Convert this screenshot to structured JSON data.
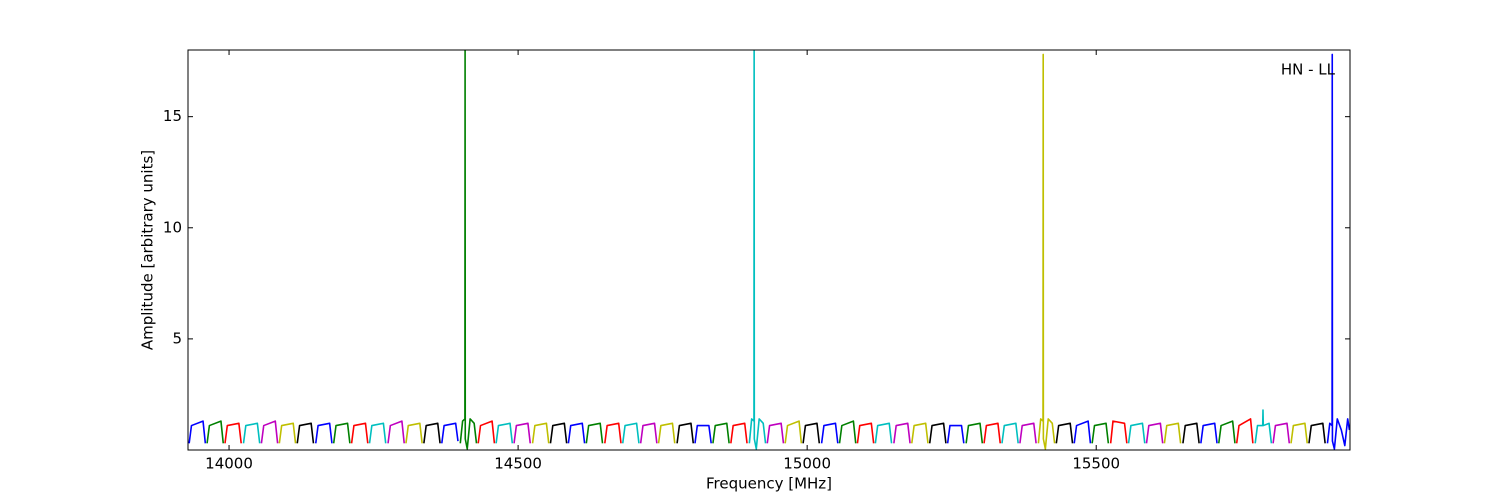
{
  "chart_data": {
    "type": "line",
    "xlabel": "Frequency [MHz]",
    "ylabel": "Amplitude [arbitrary units]",
    "annotation": "HN - LL",
    "xlim": [
      13929,
      15939
    ],
    "ylim": [
      0,
      18
    ],
    "xticks": [
      14000,
      14500,
      15000,
      15500
    ],
    "yticks": [
      5,
      10,
      15
    ],
    "series": [
      {
        "color": "#0000ff",
        "x": [
          13931,
          13935,
          13955,
          13959,
          null,
          14150,
          14154,
          14174,
          14178,
          null,
          14368,
          14372,
          14392,
          14396,
          null,
          14587,
          14591,
          14611,
          14615,
          null,
          14806,
          14810,
          14830,
          14834,
          null,
          15025,
          15029,
          15049,
          15053,
          null,
          15243,
          15247,
          15267,
          15271,
          null,
          15462,
          15466,
          15486,
          15490,
          null,
          15681,
          15685,
          15705,
          15709,
          null,
          15900,
          15904,
          15908,
          15908.3,
          15908.6,
          15912,
          15917,
          15924,
          15930,
          15935,
          15938
        ],
        "values": [
          0.3,
          1.1,
          1.3,
          0.3,
          null,
          0.3,
          1.1,
          1.2,
          0.3,
          null,
          0.3,
          1.1,
          1.2,
          0.4,
          null,
          0.3,
          1.1,
          1.2,
          0.3,
          null,
          0.3,
          1.1,
          1.1,
          0.3,
          null,
          0.3,
          1.1,
          1.2,
          0.3,
          null,
          0.3,
          1.1,
          1.1,
          0.3,
          null,
          0.3,
          1.1,
          1.3,
          0.3,
          null,
          0.3,
          1.1,
          1.2,
          0.3,
          null,
          0.3,
          1.2,
          1.1,
          17.8,
          0.4,
          0.05,
          1.4,
          0.9,
          0.2,
          1.4,
          0.9
        ]
      },
      {
        "color": "#008000",
        "x": [
          13962,
          13966,
          13986,
          13990,
          null,
          14181,
          14185,
          14205,
          14209,
          null,
          14400,
          14404,
          14408,
          14408.3,
          14408.6,
          14412,
          14417,
          14424,
          14428,
          null,
          14618,
          14622,
          14642,
          14646,
          null,
          14837,
          14841,
          14861,
          14865,
          null,
          15056,
          15060,
          15080,
          15084,
          null,
          15275,
          15279,
          15299,
          15303,
          null,
          15493,
          15497,
          15517,
          15521,
          null,
          15712,
          15716,
          15736,
          15740
        ],
        "values": [
          0.3,
          1.1,
          1.3,
          0.3,
          null,
          0.3,
          1.1,
          1.2,
          0.3,
          null,
          0.3,
          1.3,
          1.4,
          18,
          0.5,
          0.05,
          1.4,
          1.2,
          0.3,
          null,
          0.3,
          1.1,
          1.2,
          0.3,
          null,
          0.3,
          1.1,
          1.2,
          0.3,
          null,
          0.3,
          1.1,
          1.3,
          0.3,
          null,
          0.3,
          1.1,
          1.2,
          0.3,
          null,
          0.3,
          1.1,
          1.2,
          0.3,
          null,
          0.3,
          1.1,
          1.3,
          0.3
        ]
      },
      {
        "color": "#ff0000",
        "x": [
          13993,
          13997,
          14017,
          14021,
          null,
          14212,
          14216,
          14236,
          14240,
          null,
          14431,
          14435,
          14455,
          14459,
          null,
          14650,
          14654,
          14674,
          14678,
          null,
          14868,
          14872,
          14892,
          14896,
          null,
          15087,
          15091,
          15111,
          15115,
          null,
          15306,
          15310,
          15330,
          15334,
          null,
          15525,
          15529,
          15549,
          15553,
          null,
          15743,
          15747,
          15767,
          15771
        ],
        "values": [
          0.3,
          1.1,
          1.2,
          0.3,
          null,
          0.3,
          1.1,
          1.2,
          0.3,
          null,
          0.3,
          1.1,
          1.3,
          0.3,
          null,
          0.3,
          1.1,
          1.2,
          0.3,
          null,
          0.3,
          1.1,
          1.2,
          0.3,
          null,
          0.3,
          1.1,
          1.2,
          0.3,
          null,
          0.3,
          1.1,
          1.2,
          0.3,
          null,
          0.3,
          1.3,
          1.2,
          0.3,
          null,
          0.3,
          1.1,
          1.4,
          0.3
        ]
      },
      {
        "color": "#00bfbf",
        "x": [
          14025,
          14029,
          14049,
          14053,
          null,
          14243,
          14247,
          14267,
          14271,
          null,
          14462,
          14466,
          14486,
          14490,
          null,
          14681,
          14685,
          14705,
          14709,
          null,
          14900,
          14904,
          14908,
          14908.3,
          14908.6,
          14912,
          14917,
          14924,
          14928,
          null,
          15118,
          15122,
          15142,
          15146,
          null,
          15337,
          15341,
          15361,
          15365,
          null,
          15556,
          15560,
          15580,
          15584,
          null,
          15775,
          15779,
          15788,
          15788.5,
          15789,
          15799,
          15803
        ],
        "values": [
          0.3,
          1.1,
          1.2,
          0.3,
          null,
          0.3,
          1.1,
          1.2,
          0.3,
          null,
          0.3,
          1.1,
          1.2,
          0.3,
          null,
          0.3,
          1.1,
          1.2,
          0.3,
          null,
          0.3,
          1.4,
          1.3,
          18,
          0.5,
          0.05,
          1.4,
          1.2,
          0.3,
          null,
          0.3,
          1.1,
          1.2,
          0.3,
          null,
          0.3,
          1.1,
          1.2,
          0.3,
          null,
          0.3,
          1.1,
          1.2,
          0.3,
          null,
          0.3,
          1.1,
          1.1,
          1.8,
          1.1,
          1.2,
          0.3
        ]
      },
      {
        "color": "#bf00bf",
        "x": [
          14056,
          14060,
          14080,
          14084,
          null,
          14275,
          14279,
          14299,
          14303,
          null,
          14493,
          14497,
          14517,
          14521,
          null,
          14712,
          14716,
          14736,
          14740,
          null,
          14931,
          14935,
          14955,
          14959,
          null,
          15150,
          15154,
          15174,
          15178,
          null,
          15368,
          15372,
          15392,
          15396,
          null,
          15587,
          15591,
          15611,
          15615,
          null,
          15806,
          15810,
          15830,
          15834
        ],
        "values": [
          0.3,
          1.1,
          1.3,
          0.3,
          null,
          0.3,
          1.1,
          1.3,
          0.3,
          null,
          0.3,
          1.1,
          1.2,
          0.3,
          null,
          0.3,
          1.1,
          1.2,
          0.3,
          null,
          0.3,
          1.1,
          1.2,
          0.3,
          null,
          0.3,
          1.1,
          1.2,
          0.3,
          null,
          0.3,
          1.1,
          1.2,
          0.3,
          null,
          0.3,
          1.1,
          1.2,
          0.3,
          null,
          0.3,
          1.1,
          1.2,
          0.3
        ]
      },
      {
        "color": "#bfbf00",
        "x": [
          14087,
          14091,
          14111,
          14115,
          null,
          14306,
          14310,
          14330,
          14334,
          null,
          14525,
          14529,
          14549,
          14553,
          null,
          14743,
          14747,
          14767,
          14771,
          null,
          14962,
          14966,
          14986,
          14990,
          null,
          15181,
          15185,
          15205,
          15209,
          null,
          15400,
          15404,
          15408,
          15408.3,
          15408.6,
          15412,
          15417,
          15424,
          15428,
          null,
          15618,
          15622,
          15642,
          15646,
          null,
          15837,
          15841,
          15861,
          15865
        ],
        "values": [
          0.3,
          1.1,
          1.2,
          0.3,
          null,
          0.3,
          1.1,
          1.2,
          0.3,
          null,
          0.3,
          1.1,
          1.2,
          0.3,
          null,
          0.3,
          1.1,
          1.2,
          0.3,
          null,
          0.3,
          1.1,
          1.3,
          0.3,
          null,
          0.3,
          1.1,
          1.2,
          0.3,
          null,
          0.3,
          1.4,
          1.3,
          17.8,
          0.5,
          0.05,
          1.4,
          1.2,
          0.3,
          null,
          0.3,
          1.1,
          1.2,
          0.3,
          null,
          0.3,
          1.1,
          1.2,
          0.3
        ]
      },
      {
        "color": "#000000",
        "x": [
          14118,
          14122,
          14142,
          14146,
          null,
          14337,
          14341,
          14361,
          14365,
          null,
          14556,
          14560,
          14580,
          14584,
          null,
          14775,
          14779,
          14799,
          14803,
          null,
          14993,
          14997,
          15017,
          15021,
          null,
          15212,
          15216,
          15236,
          15240,
          null,
          15431,
          15435,
          15455,
          15459,
          null,
          15650,
          15654,
          15674,
          15678,
          null,
          15868,
          15872,
          15892,
          15896
        ],
        "values": [
          0.3,
          1.1,
          1.2,
          0.3,
          null,
          0.3,
          1.1,
          1.2,
          0.3,
          null,
          0.3,
          1.1,
          1.2,
          0.3,
          null,
          0.3,
          1.1,
          1.2,
          0.3,
          null,
          0.3,
          1.1,
          1.2,
          0.3,
          null,
          0.3,
          1.1,
          1.2,
          0.3,
          null,
          0.3,
          1.1,
          1.2,
          0.3,
          null,
          0.3,
          1.1,
          1.2,
          0.3,
          null,
          0.3,
          1.1,
          1.2,
          0.3
        ]
      }
    ]
  }
}
